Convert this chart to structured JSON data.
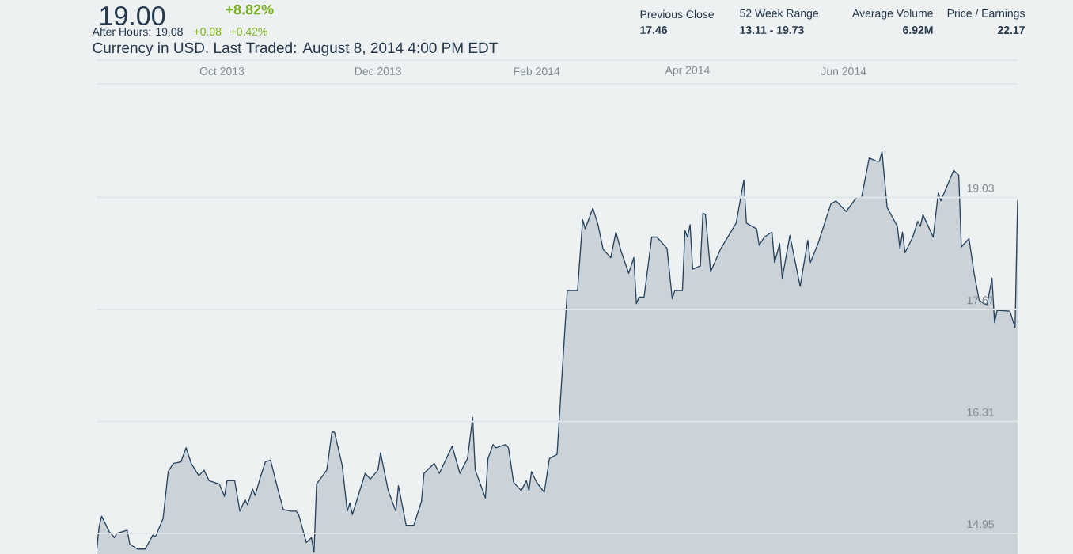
{
  "chart_data": {
    "type": "area",
    "subtitle": "Currency in USD. Last Traded: August 8, 2014 4:00 PM EDT",
    "annotations": [
      "19.00",
      "+8.82%",
      "After Hours: 19.08",
      "+0.08",
      "+0.42%",
      "Previous Close",
      "17.46",
      "52 Week Range",
      "13.11 - 19.73",
      "Average Volume",
      "6.92M",
      "Price / Earnings",
      "22.17"
    ],
    "xlim": [
      "2013-08-13",
      "2014-08-08"
    ],
    "xticks": [
      {
        "value": "2013-10-01",
        "label": "Oct 2013"
      },
      {
        "value": "2013-12-01",
        "label": "Dec 2013"
      },
      {
        "value": "2014-02-01",
        "label": "Feb 2014"
      },
      {
        "value": "2014-04-01",
        "label": "Apr 2014"
      },
      {
        "value": "2014-06-01",
        "label": "Jun 2014"
      }
    ],
    "ylim": [
      14.7,
      20.41
    ],
    "yticks": [
      19.03,
      17.67,
      16.31,
      14.95
    ],
    "grid": "y",
    "series": [
      {
        "color": "#27435e",
        "x": [
          "2013-08-13",
          "2013-08-14",
          "2013-08-15",
          "2013-08-18",
          "2013-08-20",
          "2013-08-21",
          "2013-08-25",
          "2013-08-26",
          "2013-08-29",
          "2013-09-01",
          "2013-09-04",
          "2013-09-05",
          "2013-09-08",
          "2013-09-10",
          "2013-09-12",
          "2013-09-15",
          "2013-09-17",
          "2013-09-19",
          "2013-09-22",
          "2013-09-24",
          "2013-09-26",
          "2013-09-30",
          "2013-10-02",
          "2013-10-03",
          "2013-10-06",
          "2013-10-08",
          "2013-10-10",
          "2013-10-11",
          "2013-10-13",
          "2013-10-14",
          "2013-10-16",
          "2013-10-18",
          "2013-10-20",
          "2013-10-23",
          "2013-10-25",
          "2013-10-28",
          "2013-10-30",
          "2013-10-31",
          "2013-11-03",
          "2013-11-05",
          "2013-11-06",
          "2013-11-07",
          "2013-11-11",
          "2013-11-13",
          "2013-11-14",
          "2013-11-17",
          "2013-11-19",
          "2013-11-20",
          "2013-11-21",
          "2013-11-26",
          "2013-11-28",
          "2013-12-01",
          "2013-12-02",
          "2013-12-05",
          "2013-12-08",
          "2013-12-09",
          "2013-12-12",
          "2013-12-15",
          "2013-12-18",
          "2013-12-19",
          "2013-12-23",
          "2013-12-25",
          "2013-12-30",
          "2014-01-02",
          "2014-01-05",
          "2014-01-07",
          "2014-01-08",
          "2014-01-12",
          "2014-01-13",
          "2014-01-15",
          "2014-01-16",
          "2014-01-20",
          "2014-01-21",
          "2014-01-23",
          "2014-01-26",
          "2014-01-28",
          "2014-01-29",
          "2014-01-30",
          "2014-02-01",
          "2014-02-04",
          "2014-02-06",
          "2014-02-09",
          "2014-02-13",
          "2014-02-17",
          "2014-02-19",
          "2014-02-20",
          "2014-02-23",
          "2014-02-25",
          "2014-02-27",
          "2014-03-02",
          "2014-03-04",
          "2014-03-06",
          "2014-03-09",
          "2014-03-11",
          "2014-03-12",
          "2014-03-13",
          "2014-03-15",
          "2014-03-18",
          "2014-03-20",
          "2014-03-24",
          "2014-03-26",
          "2014-03-27",
          "2014-03-30",
          "2014-03-31",
          "2014-04-01",
          "2014-04-02",
          "2014-04-03",
          "2014-04-06",
          "2014-04-07",
          "2014-04-08",
          "2014-04-10",
          "2014-04-14",
          "2014-04-20",
          "2014-04-23",
          "2014-04-24",
          "2014-04-28",
          "2014-04-29",
          "2014-05-01",
          "2014-05-04",
          "2014-05-05",
          "2014-05-07",
          "2014-05-08",
          "2014-05-11",
          "2014-05-15",
          "2014-05-18",
          "2014-05-19",
          "2014-05-22",
          "2014-05-27",
          "2014-05-29",
          "2014-06-02",
          "2014-06-06",
          "2014-06-08",
          "2014-06-11",
          "2014-06-14",
          "2014-06-15",
          "2014-06-16",
          "2014-06-18",
          "2014-06-22",
          "2014-06-23",
          "2014-06-24",
          "2014-06-25",
          "2014-06-28",
          "2014-06-30",
          "2014-07-01",
          "2014-07-02",
          "2014-07-06",
          "2014-07-08",
          "2014-07-09",
          "2014-07-14",
          "2014-07-16",
          "2014-07-17",
          "2014-07-20",
          "2014-07-22",
          "2014-07-24",
          "2014-07-27",
          "2014-07-29",
          "2014-07-30",
          "2014-07-31",
          "2014-08-05",
          "2014-08-07",
          "2014-08-08"
        ],
        "values": [
          14.72,
          15.03,
          15.16,
          14.97,
          14.9,
          14.95,
          14.99,
          14.82,
          14.76,
          14.76,
          14.93,
          14.91,
          15.13,
          15.7,
          15.8,
          15.82,
          15.99,
          15.8,
          15.65,
          15.72,
          15.59,
          15.55,
          15.4,
          15.59,
          15.59,
          15.22,
          15.36,
          15.3,
          15.49,
          15.41,
          15.63,
          15.82,
          15.84,
          15.47,
          15.24,
          15.22,
          15.22,
          15.18,
          14.84,
          14.9,
          14.72,
          15.55,
          15.72,
          16.18,
          16.18,
          15.78,
          15.22,
          15.32,
          15.18,
          15.68,
          15.61,
          15.72,
          15.93,
          15.47,
          15.22,
          15.53,
          15.05,
          15.05,
          15.34,
          15.68,
          15.8,
          15.68,
          16.01,
          15.68,
          15.86,
          16.36,
          15.72,
          15.38,
          15.86,
          16.03,
          15.99,
          16.03,
          15.99,
          15.57,
          15.47,
          15.59,
          15.47,
          15.7,
          15.57,
          15.45,
          15.86,
          15.91,
          17.9,
          17.9,
          18.76,
          18.65,
          18.9,
          18.7,
          18.4,
          18.3,
          18.61,
          18.38,
          18.11,
          18.3,
          17.74,
          17.82,
          17.82,
          18.55,
          18.55,
          18.41,
          17.8,
          17.9,
          17.9,
          18.63,
          18.55,
          18.7,
          18.16,
          18.2,
          18.84,
          18.82,
          18.13,
          18.41,
          18.72,
          19.24,
          18.72,
          18.65,
          18.45,
          18.55,
          18.61,
          18.24,
          18.47,
          18.05,
          18.57,
          17.95,
          18.51,
          18.24,
          18.47,
          18.95,
          18.99,
          18.86,
          19.03,
          19.03,
          19.51,
          19.47,
          19.47,
          19.59,
          18.91,
          18.68,
          18.41,
          18.61,
          18.36,
          18.55,
          18.74,
          18.68,
          18.82,
          18.55,
          19.09,
          18.99,
          19.36,
          19.3,
          18.43,
          18.53,
          18.11,
          17.78,
          17.72,
          18.05,
          17.51,
          17.66,
          17.65,
          17.45,
          19.0
        ]
      }
    ]
  }
}
